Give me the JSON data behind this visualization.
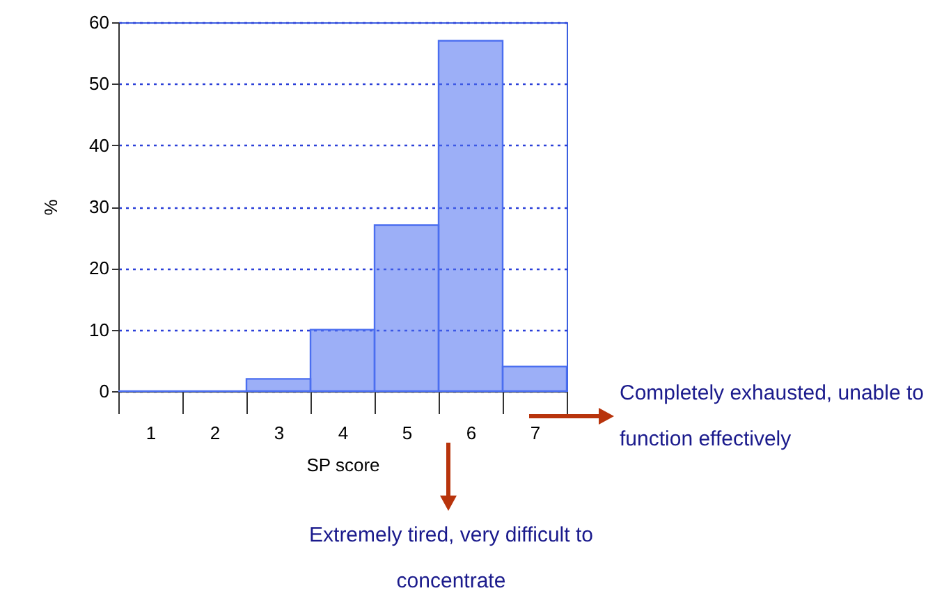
{
  "chart_data": {
    "type": "bar",
    "categories": [
      "1",
      "2",
      "3",
      "4",
      "5",
      "6",
      "7"
    ],
    "values": [
      0,
      0,
      2,
      10,
      27,
      57,
      4
    ],
    "color": "#4a6ef0",
    "xlabel": "SP score",
    "ylabel": "%",
    "ylim": [
      0,
      60
    ],
    "yticks": [
      0,
      10,
      20,
      30,
      40,
      50,
      60
    ],
    "grid": "y",
    "annotations": [
      "Completely exhausted, unable to function effectively",
      "Extremely tired, very difficult to concentrate"
    ]
  }
}
